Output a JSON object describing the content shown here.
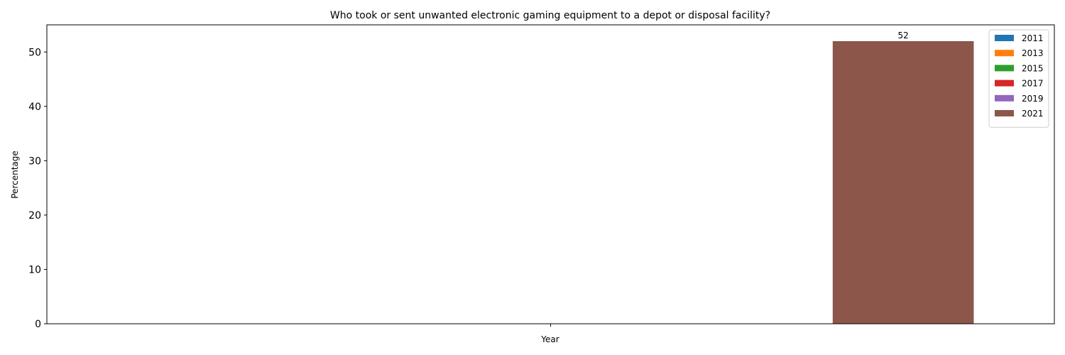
{
  "chart_data": {
    "type": "bar",
    "title": "Who took or sent unwanted electronic gaming equipment to a depot or disposal facility?",
    "xlabel": "Year",
    "ylabel": "Percentage",
    "categories": [
      ""
    ],
    "ylim": [
      0,
      55
    ],
    "yticks": [
      0,
      10,
      20,
      30,
      40,
      50
    ],
    "grid": false,
    "legend_position": "top-right",
    "series": [
      {
        "name": "2011",
        "color": "#1f77b4",
        "values": [
          null
        ]
      },
      {
        "name": "2013",
        "color": "#ff7f0e",
        "values": [
          null
        ]
      },
      {
        "name": "2015",
        "color": "#2ca02c",
        "values": [
          null
        ]
      },
      {
        "name": "2017",
        "color": "#d62728",
        "values": [
          null
        ]
      },
      {
        "name": "2019",
        "color": "#9467bd",
        "values": [
          null
        ]
      },
      {
        "name": "2021",
        "color": "#8c564b",
        "values": [
          52
        ]
      }
    ],
    "data_labels": [
      "",
      "",
      "",
      "",
      "",
      "52"
    ]
  }
}
